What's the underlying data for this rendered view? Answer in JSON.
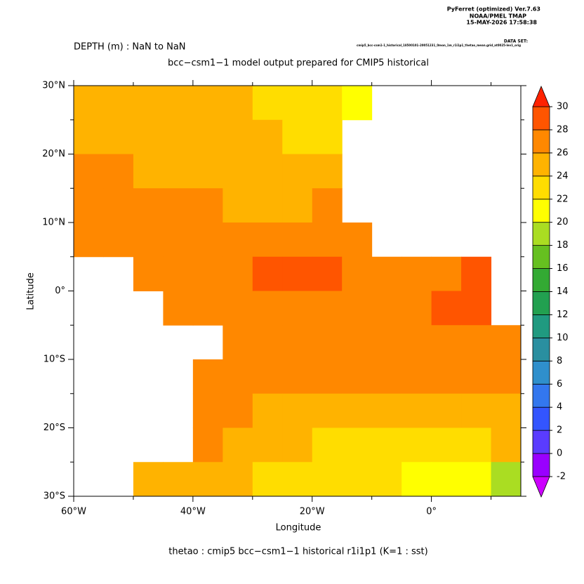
{
  "header": {
    "software": "PyFerret (optimized) Ver.7.63",
    "org": "NOAA/PMEL TMAP",
    "timestamp": "15-MAY-2026 17:58:38",
    "dataset_label": "DATA SET:",
    "dataset": "cmip5_bcc-csm1-1_historical_18500101-20051231_0mon_1m_r1i1p1_thetao_mean.grid_at0025-lev1_orig"
  },
  "chart_data": {
    "type": "heatmap",
    "title": "DEPTH (m) : NaN to NaN",
    "subtitle": "bcc−csm1−1 model output prepared for CMIP5 historical",
    "x_label": "Longitude",
    "y_label": "Latitude",
    "footer": "thetao : cmip5 bcc−csm1−1 historical r1i1p1    (K=1 : sst)",
    "xlim": [
      -60,
      15
    ],
    "ylim": [
      -30,
      30
    ],
    "xticks": [
      {
        "value": -60,
        "label": "60°W"
      },
      {
        "value": -40,
        "label": "40°W"
      },
      {
        "value": -20,
        "label": "20°W"
      },
      {
        "value": 0,
        "label": "0°"
      }
    ],
    "xticks_minor": [
      -50,
      -30,
      -10,
      10
    ],
    "yticks": [
      {
        "value": 30,
        "label": "30°N"
      },
      {
        "value": 20,
        "label": "20°N"
      },
      {
        "value": 10,
        "label": "10°N"
      },
      {
        "value": 0,
        "label": "0°"
      },
      {
        "value": -10,
        "label": "10°S"
      },
      {
        "value": -20,
        "label": "20°S"
      },
      {
        "value": -30,
        "label": "30°S"
      }
    ],
    "yticks_minor": [
      25,
      15,
      5,
      -5,
      -15,
      -25
    ],
    "cell_size": 5,
    "x": [
      -57.5,
      -52.5,
      -47.5,
      -42.5,
      -37.5,
      -32.5,
      -27.5,
      -22.5,
      -17.5,
      -12.5,
      -7.5,
      -2.5,
      2.5,
      7.5,
      12.5
    ],
    "y": [
      27.5,
      22.5,
      17.5,
      12.5,
      7.5,
      2.5,
      -2.5,
      -7.5,
      -12.5,
      -17.5,
      -22.5,
      -27.5
    ],
    "z": [
      [
        25,
        25,
        25,
        25,
        24.5,
        24,
        23.5,
        23,
        22,
        21,
        null,
        null,
        null,
        null,
        null
      ],
      [
        25.5,
        25.5,
        25,
        25,
        25,
        24.5,
        24,
        23,
        22.5,
        null,
        null,
        null,
        null,
        null,
        null
      ],
      [
        26,
        26,
        25.5,
        25.5,
        25,
        25,
        24.5,
        24,
        24,
        null,
        null,
        null,
        null,
        null,
        null
      ],
      [
        26,
        26,
        26,
        26,
        26,
        25.5,
        25.5,
        25.5,
        26,
        null,
        null,
        null,
        null,
        null,
        null
      ],
      [
        26.5,
        27,
        27,
        27,
        27,
        27,
        27.5,
        27.5,
        27.5,
        27,
        null,
        null,
        null,
        null,
        null
      ],
      [
        null,
        null,
        27,
        27,
        27,
        27.5,
        28,
        28,
        28,
        27.5,
        27.5,
        27.5,
        27.5,
        28,
        null
      ],
      [
        null,
        null,
        null,
        27,
        27,
        27,
        26.5,
        26.5,
        26.5,
        27,
        27,
        27.5,
        28,
        28,
        null
      ],
      [
        null,
        null,
        null,
        null,
        null,
        27,
        27,
        27,
        27,
        27,
        27,
        27,
        27.5,
        27.5,
        27.5
      ],
      [
        null,
        null,
        null,
        null,
        26.5,
        27,
        27,
        27,
        27,
        27,
        27,
        27,
        27,
        26.5,
        26
      ],
      [
        null,
        null,
        null,
        null,
        26.5,
        26,
        25.5,
        25.5,
        25,
        25,
        24.5,
        24.5,
        24.5,
        25,
        25
      ],
      [
        null,
        null,
        null,
        null,
        26,
        25,
        24.5,
        24,
        23.5,
        23.5,
        23,
        22.5,
        22.5,
        23,
        24
      ],
      [
        null,
        null,
        24.5,
        24,
        24,
        24,
        23.5,
        23,
        23,
        22.5,
        22,
        21.5,
        20.5,
        20,
        19.5
      ]
    ],
    "colorbar": {
      "levels": [
        -2,
        0,
        2,
        4,
        6,
        8,
        10,
        12,
        14,
        16,
        18,
        20,
        22,
        24,
        26,
        28,
        30
      ],
      "colors": [
        "#cc00ff",
        "#9900ff",
        "#5a3cff",
        "#3355ff",
        "#3377ee",
        "#2f8fcc",
        "#2a8fa0",
        "#209a80",
        "#22a050",
        "#33aa33",
        "#66c020",
        "#aadd22",
        "#ffff00",
        "#ffdd00",
        "#ffb300",
        "#ff8800",
        "#ff5500",
        "#ff2200"
      ]
    }
  }
}
